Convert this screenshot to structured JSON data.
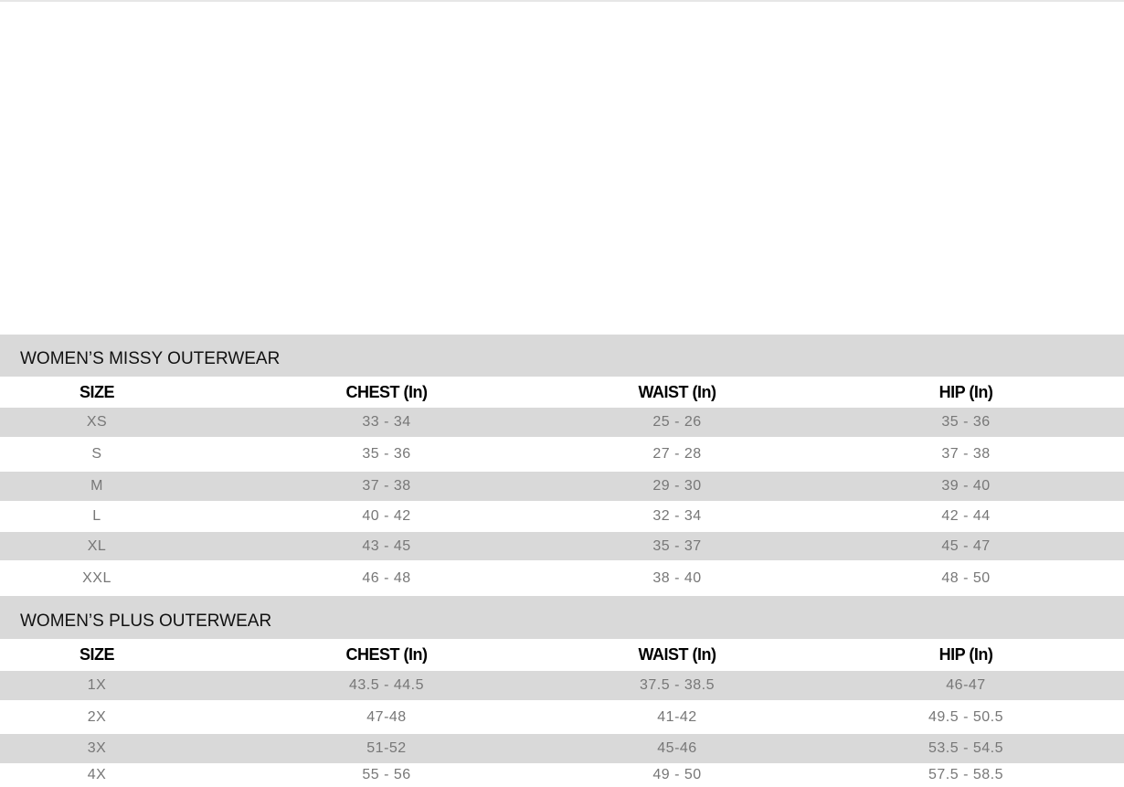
{
  "tables": [
    {
      "title": "WOMEN’S MISSY OUTERWEAR",
      "headers": [
        "SIZE",
        "CHEST (In)",
        "WAIST (In)",
        "HIP (In)"
      ],
      "rows": [
        [
          "XS",
          "33 - 34",
          "25 - 26",
          "35 - 36"
        ],
        [
          "S",
          "35 - 36",
          "27 - 28",
          "37 - 38"
        ],
        [
          "M",
          "37 - 38",
          "29 - 30",
          "39 - 40"
        ],
        [
          "L",
          "40 - 42",
          "32 - 34",
          "42 - 44"
        ],
        [
          "XL",
          "43 - 45",
          "35 - 37",
          "45 - 47"
        ],
        [
          "XXL",
          "46 - 48",
          "38 - 40",
          "48 - 50"
        ]
      ]
    },
    {
      "title": "WOMEN’S PLUS OUTERWEAR",
      "headers": [
        "SIZE",
        "CHEST (In)",
        "WAIST (In)",
        "HIP (In)"
      ],
      "rows": [
        [
          "1X",
          "43.5 - 44.5",
          "37.5 - 38.5",
          "46-47"
        ],
        [
          "2X",
          "47-48",
          "41-42",
          "49.5 - 50.5"
        ],
        [
          "3X",
          "51-52",
          "45-46",
          "53.5 - 54.5"
        ],
        [
          "4X",
          "55 - 56",
          "49 - 50",
          "57.5 - 58.5"
        ]
      ]
    }
  ],
  "colors": {
    "band": "#d9d9d9",
    "header_text": "#000000",
    "data_text": "#777777"
  }
}
